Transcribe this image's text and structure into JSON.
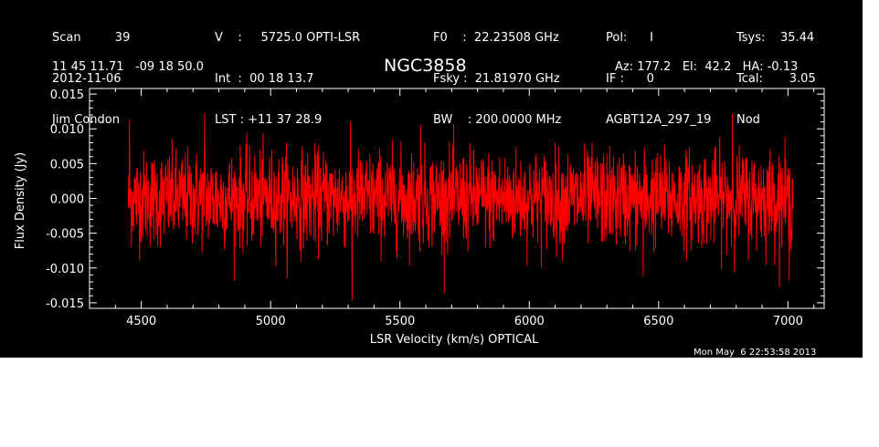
{
  "header": {
    "col1": [
      "Scan         39",
      "2012-11-06",
      "Jim Condon"
    ],
    "col2": [
      "V    :     5725.0 OPTI-LSR",
      "Int  :  00 18 13.7",
      "LST : +11 37 28.9"
    ],
    "col3": [
      "F0    :  22.23508 GHz",
      "Fsky :  21.81970 GHz",
      "BW    : 200.0000 MHz"
    ],
    "col4": [
      "Pol:      I",
      "IF :      0",
      "AGBT12A_297_19"
    ],
    "col5": [
      "Tsys:    35.44",
      "Tcal:       3.05",
      "Nod"
    ],
    "coords": "11 45 11.71   -09 18 50.0",
    "source": "NGC3858",
    "azelha": "Az: 177.2   El:  42.2   HA: -0.13",
    "timestamp": "Mon May  6 22:53:58 2013"
  },
  "colors": {
    "background": "#000000",
    "axes": "#ffffff",
    "series": "#ff0000",
    "page": "#ffffff"
  },
  "chart_data": {
    "type": "line",
    "title": "NGC3858",
    "xlabel": "LSR Velocity (km/s) OPTICAL",
    "ylabel": "Flux Density (Jy)",
    "xlim": [
      4300,
      7140
    ],
    "ylim": [
      -0.0158,
      0.0158
    ],
    "x_ticks": [
      4500,
      5000,
      5500,
      6000,
      6500,
      7000
    ],
    "x_tick_labels": [
      "4500",
      "5000",
      "5500",
      "6000",
      "6500",
      "7000"
    ],
    "y_ticks": [
      -0.015,
      -0.01,
      -0.005,
      0.0,
      0.005,
      0.01,
      0.015
    ],
    "y_tick_labels": [
      "-0.015",
      "-0.010",
      "-0.005",
      "0.000",
      "0.005",
      "0.010",
      "0.015"
    ],
    "grid": false,
    "series": [
      {
        "x_range": [
          4450,
          7020
        ],
        "noise_rms": 0.0034,
        "mean": 0.0,
        "max": 0.0125,
        "min": -0.0147,
        "approx_points": 2200,
        "peaks": [
          {
            "x": 4455,
            "y": 0.0113
          },
          {
            "x": 4745,
            "y": 0.0123
          },
          {
            "x": 5315,
            "y": -0.0147
          },
          {
            "x": 5580,
            "y": 0.0105
          },
          {
            "x": 6440,
            "y": -0.0112
          },
          {
            "x": 6785,
            "y": 0.0121
          },
          {
            "x": 7005,
            "y": -0.0118
          }
        ]
      }
    ]
  }
}
